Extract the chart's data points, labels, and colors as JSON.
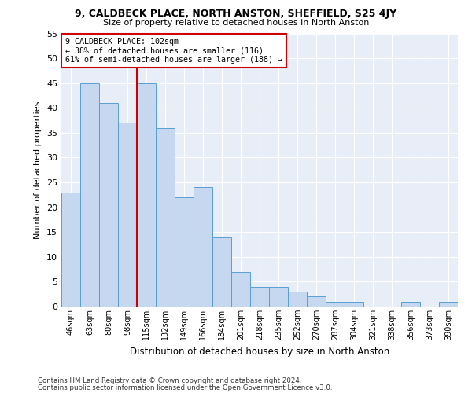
{
  "title1": "9, CALDBECK PLACE, NORTH ANSTON, SHEFFIELD, S25 4JY",
  "title2": "Size of property relative to detached houses in North Anston",
  "xlabel": "Distribution of detached houses by size in North Anston",
  "ylabel": "Number of detached properties",
  "categories": [
    "46sqm",
    "63sqm",
    "80sqm",
    "98sqm",
    "115sqm",
    "132sqm",
    "149sqm",
    "166sqm",
    "184sqm",
    "201sqm",
    "218sqm",
    "235sqm",
    "252sqm",
    "270sqm",
    "287sqm",
    "304sqm",
    "321sqm",
    "338sqm",
    "356sqm",
    "373sqm",
    "390sqm"
  ],
  "values": [
    23,
    45,
    41,
    37,
    45,
    36,
    22,
    24,
    14,
    7,
    4,
    4,
    3,
    2,
    1,
    1,
    0,
    0,
    1,
    0,
    1
  ],
  "bar_color": "#c5d8f0",
  "bar_edge_color": "#5a9fd4",
  "vline_x": 3.5,
  "vline_color": "#cc0000",
  "annotation_line1": "9 CALDBECK PLACE: 102sqm",
  "annotation_line2": "← 38% of detached houses are smaller (116)",
  "annotation_line3": "61% of semi-detached houses are larger (188) →",
  "annotation_box_color": "#ffffff",
  "annotation_border_color": "#cc0000",
  "ylim": [
    0,
    55
  ],
  "yticks": [
    0,
    5,
    10,
    15,
    20,
    25,
    30,
    35,
    40,
    45,
    50,
    55
  ],
  "background_color": "#e8eef7",
  "footer1": "Contains HM Land Registry data © Crown copyright and database right 2024.",
  "footer2": "Contains public sector information licensed under the Open Government Licence v3.0."
}
